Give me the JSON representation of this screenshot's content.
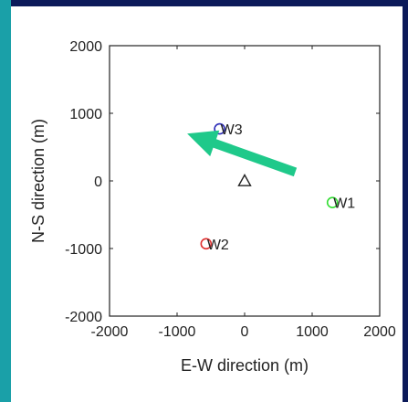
{
  "chart_data": {
    "type": "scatter",
    "title": "",
    "xlabel": "E-W direction (m)",
    "ylabel": "N-S direction (m)",
    "xlim": [
      -2000,
      2000
    ],
    "ylim": [
      -2000,
      2000
    ],
    "xticks": [
      -2000,
      -1000,
      0,
      1000,
      2000
    ],
    "yticks": [
      -2000,
      -1000,
      0,
      1000,
      2000
    ],
    "xtick_labels": [
      "-2000",
      "-1000",
      "0",
      "1000",
      "2000"
    ],
    "ytick_labels": [
      "-2000",
      "-1000",
      "0",
      "1000",
      "2000"
    ],
    "grid": false,
    "points": [
      {
        "label": "W1",
        "x": 1300,
        "y": -320,
        "marker": "circle",
        "color": "#33dd33"
      },
      {
        "label": "W2",
        "x": -570,
        "y": -930,
        "marker": "circle",
        "color": "#e03030"
      },
      {
        "label": "W3",
        "x": -370,
        "y": 770,
        "marker": "circle",
        "color": "#2a2ab8"
      },
      {
        "label": "",
        "x": 0,
        "y": 0,
        "marker": "triangle",
        "color": "#222222"
      }
    ],
    "annotations": [
      {
        "type": "arrow",
        "from": [
          750,
          130
        ],
        "to": [
          -850,
          700
        ],
        "color": "#1fc98a"
      }
    ]
  },
  "colors": {
    "frame": "#0c1a5a",
    "left_strip": "#1aa0a8",
    "axes": "#222222"
  }
}
